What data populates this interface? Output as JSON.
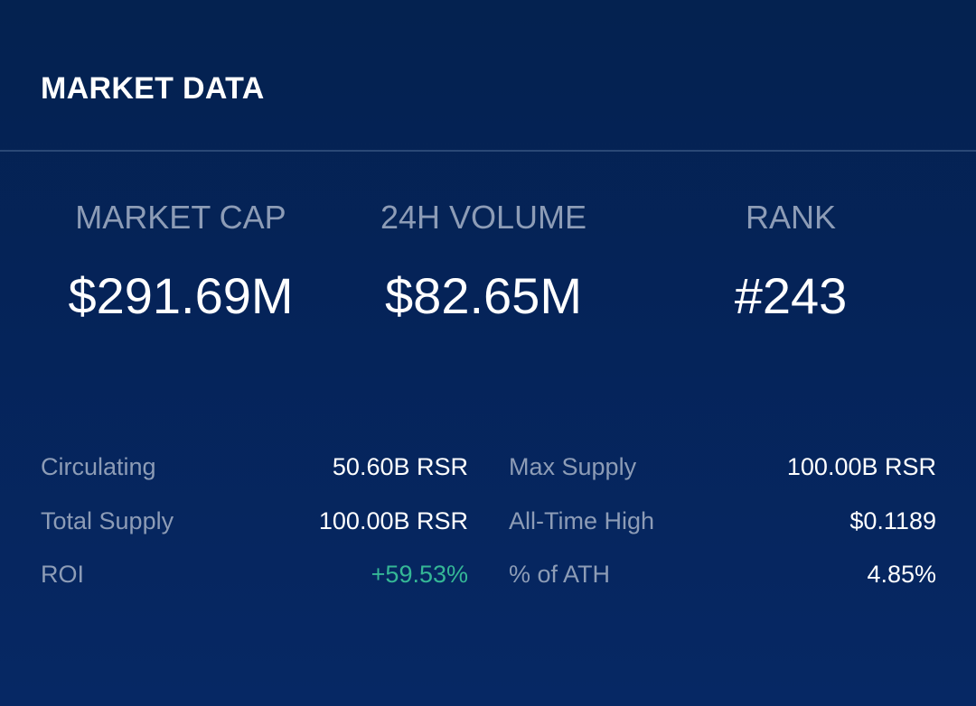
{
  "header": {
    "title": "MARKET DATA"
  },
  "stats": {
    "market_cap": {
      "label": "MARKET CAP",
      "value": "$291.69M"
    },
    "volume_24h": {
      "label": "24H VOLUME",
      "value": "$82.65M"
    },
    "rank": {
      "label": "RANK",
      "value": "#243"
    }
  },
  "details": {
    "circulating": {
      "label": "Circulating",
      "value": "50.60B RSR"
    },
    "max_supply": {
      "label": "Max Supply",
      "value": "100.00B RSR"
    },
    "total_supply": {
      "label": "Total Supply",
      "value": "100.00B RSR"
    },
    "all_time_high": {
      "label": "All-Time High",
      "value": "$0.1189"
    },
    "roi": {
      "label": "ROI",
      "value": "+59.53%"
    },
    "pct_of_ath": {
      "label": "% of ATH",
      "value": "4.85%"
    }
  },
  "colors": {
    "background": "#052358",
    "label": "#8d9cb6",
    "value": "#ffffff",
    "positive": "#35b796",
    "divider": "#2a4876"
  }
}
